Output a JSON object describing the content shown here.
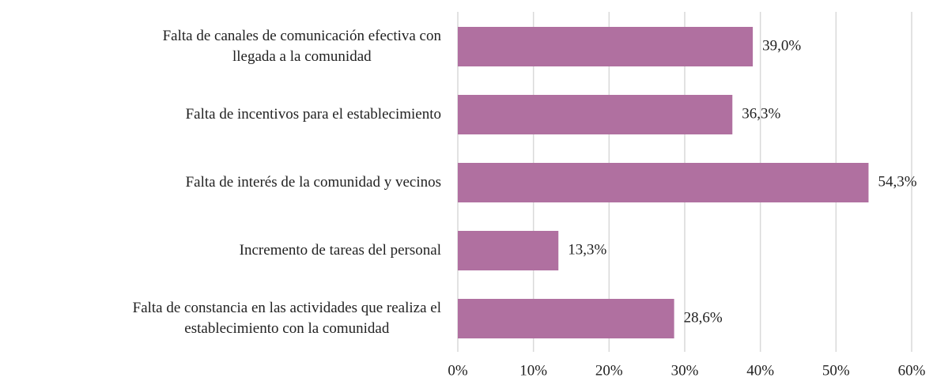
{
  "chart_data": {
    "type": "bar",
    "orientation": "horizontal",
    "categories": [
      "Falta de canales de comunicación efectiva con\nllegada a la comunidad",
      "Falta de incentivos para el establecimiento",
      "Falta de interés de la comunidad y vecinos",
      "Incremento de tareas del personal",
      "Falta de constancia en las actividades que realiza el\nestablecimiento con la comunidad"
    ],
    "values": [
      39.0,
      36.3,
      54.3,
      13.3,
      28.6
    ],
    "value_labels": [
      "39,0%",
      "36,3%",
      "54,3%",
      "13,3%",
      "28,6%"
    ],
    "color": "#b070a0",
    "xlim": [
      0,
      60
    ],
    "xticks": [
      {
        "value": 0,
        "label": "0%"
      },
      {
        "value": 10,
        "label": "10%"
      },
      {
        "value": 20,
        "label": "20%"
      },
      {
        "value": 30,
        "label": "30%"
      },
      {
        "value": 40,
        "label": "40%"
      },
      {
        "value": 50,
        "label": "50%"
      },
      {
        "value": 60,
        "label": "60%"
      }
    ],
    "grid": true
  }
}
